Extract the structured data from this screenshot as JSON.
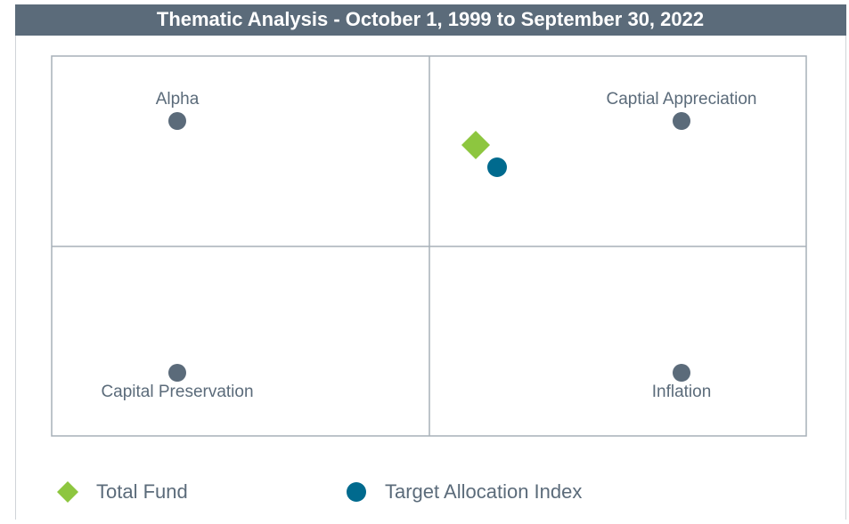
{
  "title": "Thematic Analysis - October 1, 1999 to September 30, 2022",
  "quadrants": [
    {
      "label": "Alpha"
    },
    {
      "label": "Captial Appreciation"
    },
    {
      "label": "Capital Preservation"
    },
    {
      "label": "Inflation"
    }
  ],
  "legend": [
    {
      "name": "Total Fund",
      "color": "#8dc63f"
    },
    {
      "name": "Target Allocation Index",
      "color": "#006a8e"
    }
  ]
}
